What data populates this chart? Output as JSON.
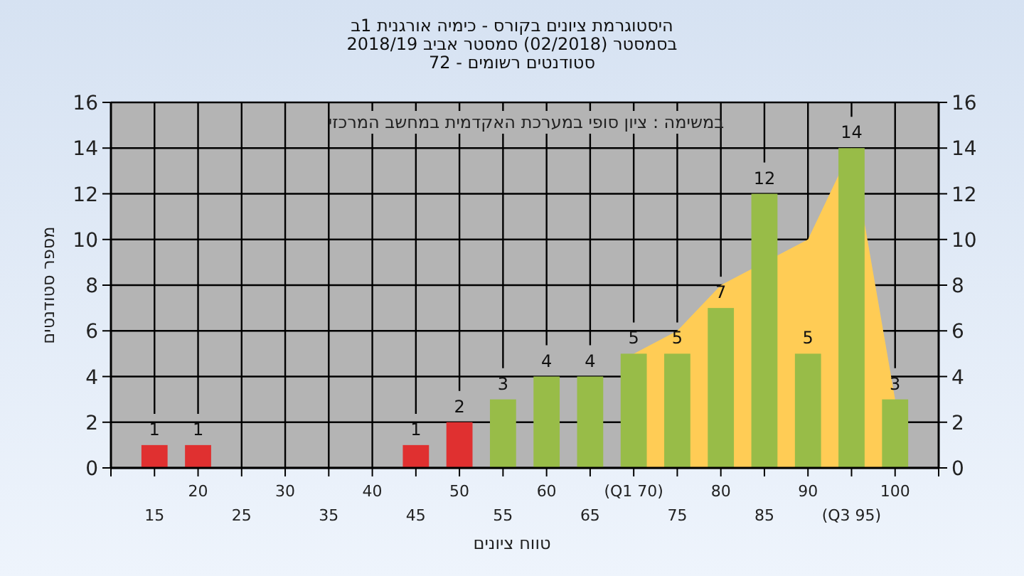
{
  "chart_data": {
    "type": "bar",
    "title": "היסטוגרמת ציונים בקורס - כימיה אורגנית 1ב",
    "subtitle": "בסמסטר (02/2018) סמסטר אביב 2018/19\nסטודנטים רשומים - 72",
    "xlabel": "טווח ציונים",
    "ylabel": "מספר סטודנטים",
    "annotations": [
      "במשימה : ציון סופי במערכת האקדמית במחשב המרכזי"
    ],
    "categories": [
      "15",
      "20",
      "25",
      "30",
      "35",
      "40",
      "45",
      "50",
      "55",
      "60",
      "65",
      "(Q1 70)",
      "75",
      "80",
      "85",
      "90",
      "(Q3 95)",
      "100"
    ],
    "series": [
      {
        "type": "area",
        "color": "#ffcc55",
        "values": [
          null,
          null,
          null,
          null,
          null,
          null,
          null,
          null,
          null,
          null,
          null,
          5,
          6,
          8,
          null,
          10,
          14,
          3
        ]
      },
      {
        "colors": [
          "#e03030",
          "#e03030",
          "#e03030",
          "#e03030",
          "#e03030",
          "#e03030",
          "#e03030",
          "#e03030",
          "#98bc48",
          "#98bc48",
          "#98bc48",
          "#98bc48",
          "#98bc48",
          "#98bc48",
          "#98bc48",
          "#98bc48",
          "#98bc48",
          "#98bc48"
        ],
        "values": [
          1,
          1,
          0,
          0,
          0,
          0,
          1,
          2,
          3,
          4,
          4,
          5,
          5,
          7,
          12,
          5,
          14,
          3
        ],
        "value_labels": [
          "1",
          "1",
          null,
          null,
          null,
          null,
          "1",
          "2",
          "3",
          "4",
          "4",
          "5",
          "5",
          "7",
          "12",
          "5",
          "14",
          "3"
        ]
      }
    ],
    "ylim": [
      0,
      16
    ],
    "yticks": [
      0,
      2,
      4,
      6,
      8,
      10,
      12,
      14,
      16
    ],
    "y2lim": [
      0,
      16
    ],
    "y2ticks": [
      0,
      2,
      4,
      6,
      8,
      10,
      12,
      14,
      16
    ],
    "grid": true
  }
}
